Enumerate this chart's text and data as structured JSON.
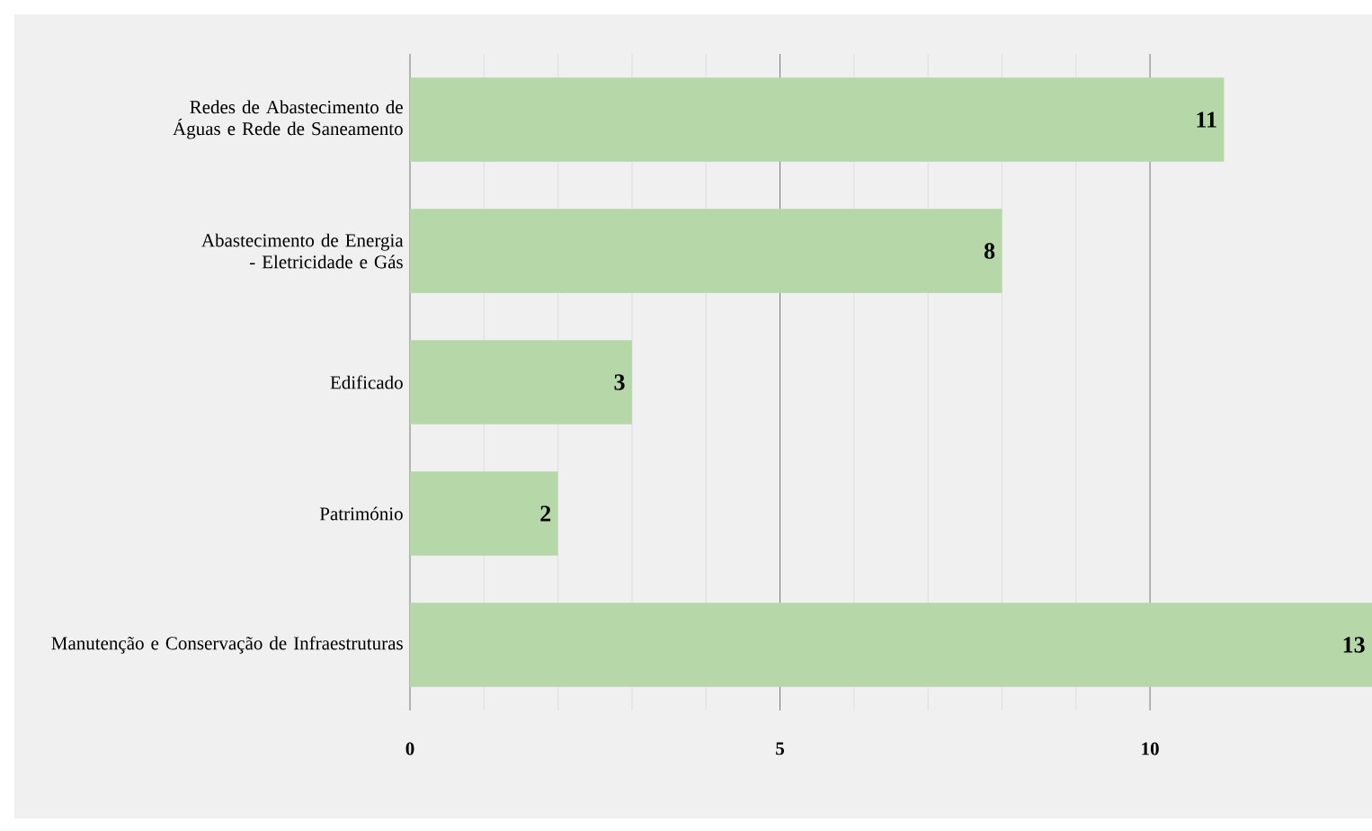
{
  "chart_data": {
    "type": "bar",
    "orientation": "horizontal",
    "categories": [
      "Redes de Abastecimento de Águas e Rede de Saneamento",
      "Abastecimento de Energia - Eletricidade e Gás",
      "Edificado",
      "Património",
      "Manutenção e Conservação de Infraestruturas"
    ],
    "values": [
      11,
      8,
      3,
      2,
      13
    ],
    "color": "#b6d7a8",
    "xlim": [
      0,
      13
    ],
    "xticks": [
      0,
      5,
      10
    ],
    "grid": "x",
    "data_labels": true
  }
}
